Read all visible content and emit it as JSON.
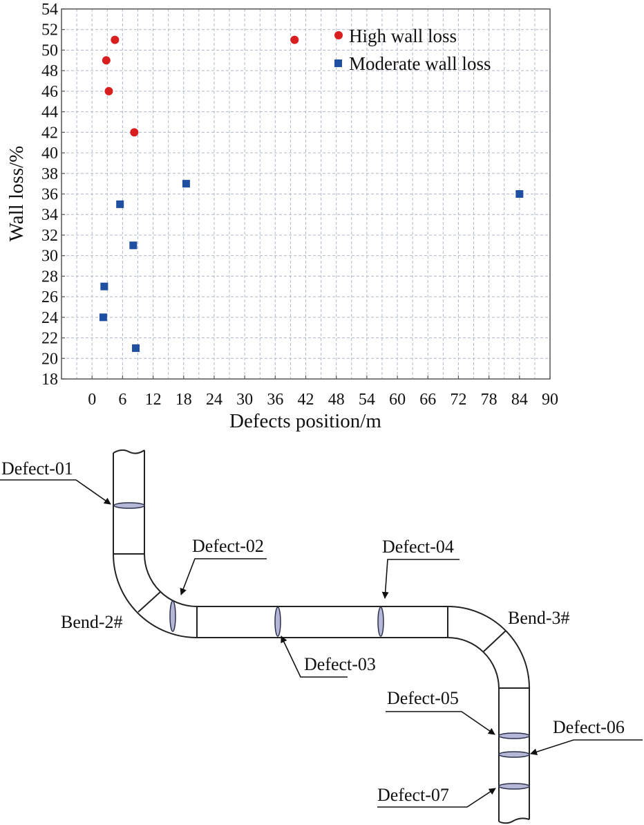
{
  "chart_data": {
    "type": "scatter",
    "xlabel": "Defects position/m",
    "ylabel": "Wall loss/%",
    "xlim": [
      -6,
      90
    ],
    "ylim": [
      18,
      54
    ],
    "xticks": [
      "0",
      "6",
      "12",
      "18",
      "24",
      "30",
      "36",
      "42",
      "48",
      "54",
      "60",
      "66",
      "72",
      "78",
      "84",
      "90"
    ],
    "yticks": [
      "18",
      "20",
      "22",
      "24",
      "26",
      "28",
      "30",
      "32",
      "34",
      "36",
      "38",
      "40",
      "42",
      "44",
      "46",
      "48",
      "50",
      "52",
      "54"
    ],
    "grid": true,
    "legend_position": "top-right",
    "series": [
      {
        "name": "High wall loss",
        "marker": "circle",
        "color": "#d81e1e",
        "points": [
          [
            4.5,
            51
          ],
          [
            39.8,
            51
          ],
          [
            2.8,
            49
          ],
          [
            3.3,
            46
          ],
          [
            8.3,
            42
          ]
        ]
      },
      {
        "name": "Moderate wall loss",
        "marker": "square",
        "color": "#1f4fa0",
        "points": [
          [
            18.5,
            37
          ],
          [
            84,
            36
          ],
          [
            5.5,
            35
          ],
          [
            8.1,
            31
          ],
          [
            2.4,
            27
          ],
          [
            2.2,
            24
          ],
          [
            8.6,
            21
          ]
        ]
      }
    ]
  },
  "diagram": {
    "labels": {
      "defect_01": "Defect-01",
      "defect_02": "Defect-02",
      "defect_03": "Defect-03",
      "defect_04": "Defect-04",
      "defect_05": "Defect-05",
      "defect_06": "Defect-06",
      "defect_07": "Defect-07",
      "bend_2": "Bend-2#",
      "bend_3": "Bend-3#"
    },
    "colors": {
      "defect_fill": "#b4b8d6",
      "pipe_stroke": "#222222"
    }
  }
}
